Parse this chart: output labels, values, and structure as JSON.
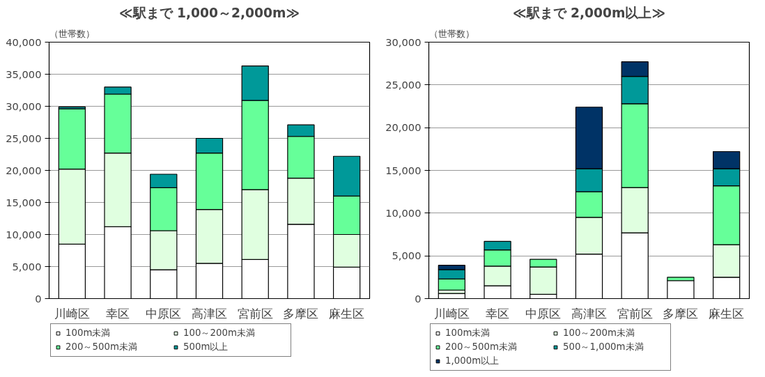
{
  "chart_data": [
    {
      "type": "bar",
      "stacked": true,
      "title": "≪駅まで 1,000～2,000m≫",
      "ylabel": "（世帯数）",
      "categories": [
        "川崎区",
        "幸区",
        "中原区",
        "高津区",
        "宮前区",
        "多摩区",
        "麻生区"
      ],
      "series": [
        {
          "name": "100m未満",
          "color": "#ffffff",
          "values": [
            8500,
            11200,
            4500,
            5500,
            6100,
            11600,
            4900
          ]
        },
        {
          "name": "100～200m未満",
          "color": "#e0ffe0",
          "values": [
            11700,
            11500,
            6100,
            8400,
            10900,
            7200,
            5100
          ]
        },
        {
          "name": "200～500m未満",
          "color": "#66ff99",
          "values": [
            9400,
            9200,
            6700,
            8800,
            13900,
            6500,
            6000
          ]
        },
        {
          "name": "500m以上",
          "color": "#009999",
          "values": [
            300,
            1100,
            2100,
            2300,
            5400,
            1800,
            6200
          ]
        }
      ],
      "ylim": [
        0,
        40000
      ],
      "yticks": [
        0,
        {
          "value": 5000,
          "label": "5,000"
        },
        {
          "value": 10000,
          "label": "10,000"
        },
        {
          "value": 15000,
          "label": "15,000"
        },
        {
          "value": 20000,
          "label": "20,000"
        },
        {
          "value": 25000,
          "label": "25,000"
        },
        {
          "value": 30000,
          "label": "30,000"
        },
        {
          "value": 35000,
          "label": "35,000"
        },
        {
          "value": 40000,
          "label": "40,000"
        }
      ],
      "grid": "y",
      "legend": "bottom"
    },
    {
      "type": "bar",
      "stacked": true,
      "title": "≪駅まで 2,000m以上≫",
      "ylabel": "（世帯数）",
      "categories": [
        "川崎区",
        "幸区",
        "中原区",
        "高津区",
        "宮前区",
        "多摩区",
        "麻生区"
      ],
      "series": [
        {
          "name": "100m未満",
          "color": "#ffffff",
          "values": [
            600,
            1500,
            500,
            5200,
            7700,
            2100,
            2500
          ]
        },
        {
          "name": "100～200m未満",
          "color": "#e0ffe0",
          "values": [
            400,
            2300,
            3200,
            4300,
            5300,
            null,
            3800
          ]
        },
        {
          "name": "200～500m未満",
          "color": "#66ff99",
          "values": [
            1300,
            1900,
            900,
            3000,
            9800,
            400,
            6900
          ]
        },
        {
          "name": "500～1,000m未満",
          "color": "#009999",
          "values": [
            1100,
            1000,
            null,
            2700,
            3200,
            null,
            2000
          ]
        },
        {
          "name": "1,000m以上",
          "color": "#003366",
          "values": [
            500,
            null,
            null,
            7200,
            1700,
            null,
            2000
          ]
        }
      ],
      "ylim": [
        0,
        30000
      ],
      "yticks": [
        0,
        {
          "value": 5000,
          "label": "5,000"
        },
        {
          "value": 10000,
          "label": "10,000"
        },
        {
          "value": 15000,
          "label": "15,000"
        },
        {
          "value": 20000,
          "label": "20,000"
        },
        {
          "value": 25000,
          "label": "25,000"
        },
        {
          "value": 30000,
          "label": "30,000"
        }
      ],
      "grid": "y",
      "legend": "bottom"
    }
  ]
}
